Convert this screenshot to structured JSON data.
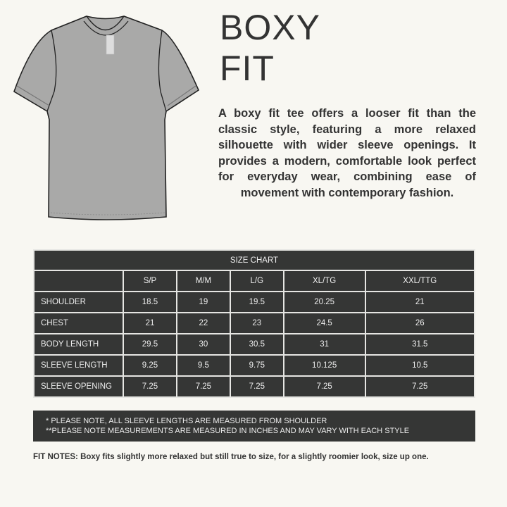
{
  "title_lines": [
    "BOXY",
    "FIT"
  ],
  "description": "A boxy fit tee offers a looser fit than the classic style, featuring a more relaxed silhouette with wider sleeve openings. It provides a modern, comfortable look perfect for everyday wear, combining ease of movement with contemporary fashion.",
  "size_chart": {
    "title": "SIZE CHART",
    "sizes": [
      "S/P",
      "M/M",
      "L/G",
      "XL/TG",
      "XXL/TTG"
    ],
    "rows": [
      {
        "label": "SHOULDER",
        "values": [
          "18.5",
          "19",
          "19.5",
          "20.25",
          "21"
        ]
      },
      {
        "label": "CHEST",
        "values": [
          "21",
          "22",
          "23",
          "24.5",
          "26"
        ]
      },
      {
        "label": "BODY LENGTH",
        "values": [
          "29.5",
          "30",
          "30.5",
          "31",
          "31.5"
        ]
      },
      {
        "label": "SLEEVE LENGTH",
        "values": [
          "9.25",
          "9.5",
          "9.75",
          "10.125",
          "10.5"
        ]
      },
      {
        "label": "SLEEVE OPENING",
        "values": [
          "7.25",
          "7.25",
          "7.25",
          "7.25",
          "7.25"
        ]
      }
    ]
  },
  "notes": [
    "* PLEASE NOTE, ALL SLEEVE LENGTHS ARE MEASURED FROM SHOULDER",
    "**PLEASE NOTE MEASUREMENTS ARE MEASURED IN INCHES AND MAY  VARY WITH EACH STYLE"
  ],
  "fit_notes": {
    "label": "FIT NOTES:",
    "text": " Boxy fits slightly more relaxed but still true to size, for a slightly roomier look, size up one."
  },
  "colors": {
    "background": "#f8f7f2",
    "table": "#353635",
    "shirt": "#a9a9a8"
  }
}
